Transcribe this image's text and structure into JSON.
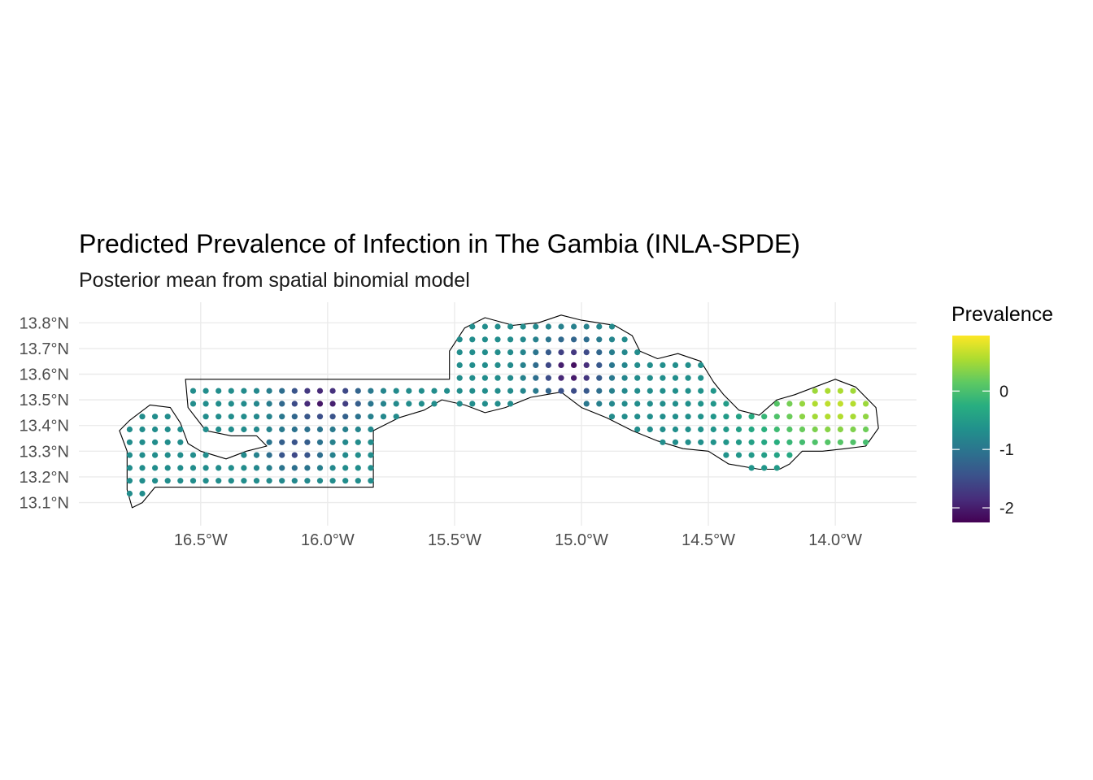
{
  "chart_data": {
    "type": "map",
    "title": "Predicted Prevalence of Infection in The Gambia (INLA-SPDE)",
    "subtitle": "Posterior mean from spatial binomial model",
    "x_ticks": [
      "16.5°W",
      "16.0°W",
      "15.5°W",
      "15.0°W",
      "14.5°W",
      "14.0°W"
    ],
    "x_tick_values": [
      -16.5,
      -16.0,
      -15.5,
      -15.0,
      -14.5,
      -14.0
    ],
    "y_ticks": [
      "13.8°N",
      "13.7°N",
      "13.6°N",
      "13.5°N",
      "13.4°N",
      "13.3°N",
      "13.2°N",
      "13.1°N"
    ],
    "y_tick_values": [
      13.8,
      13.7,
      13.6,
      13.5,
      13.4,
      13.3,
      13.2,
      13.1
    ],
    "xlim": [
      -16.98,
      -13.68
    ],
    "ylim": [
      13.01,
      13.88
    ],
    "grid": true,
    "legend": {
      "title": "Prevalence",
      "position": "right",
      "ticks": [
        "0",
        "-1",
        "-2"
      ],
      "tick_values": [
        0,
        -1,
        -2
      ],
      "range": [
        -2.25,
        0.95
      ]
    },
    "colormap": "viridis",
    "prediction_grid": {
      "lon_start": -16.78,
      "lon_step": 0.05,
      "lat_start": 13.085,
      "lat_step": 0.05,
      "baseline_value": -0.7,
      "hotspots": [
        {
          "lon": -16.02,
          "lat": 13.5,
          "sigma_lon": 0.11,
          "sigma_lat": 0.06,
          "amplitude": -1.4
        },
        {
          "lon": -16.13,
          "lat": 13.3,
          "sigma_lon": 0.08,
          "sigma_lat": 0.05,
          "amplitude": -0.9
        },
        {
          "lon": -15.04,
          "lat": 13.62,
          "sigma_lon": 0.09,
          "sigma_lat": 0.08,
          "amplitude": -1.45
        },
        {
          "lon": -14.0,
          "lat": 13.48,
          "sigma_lon": 0.22,
          "sigma_lat": 0.14,
          "amplitude": 1.35
        }
      ]
    },
    "outline_lonlat": [
      [
        -16.56,
        13.58
      ],
      [
        -15.52,
        13.58
      ],
      [
        -15.52,
        13.69
      ],
      [
        -15.46,
        13.78
      ],
      [
        -15.38,
        13.82
      ],
      [
        -15.27,
        13.79
      ],
      [
        -15.17,
        13.8
      ],
      [
        -15.08,
        13.83
      ],
      [
        -15.0,
        13.81
      ],
      [
        -14.87,
        13.79
      ],
      [
        -14.8,
        13.75
      ],
      [
        -14.77,
        13.69
      ],
      [
        -14.7,
        13.66
      ],
      [
        -14.62,
        13.68
      ],
      [
        -14.53,
        13.65
      ],
      [
        -14.48,
        13.57
      ],
      [
        -14.44,
        13.52
      ],
      [
        -14.38,
        13.46
      ],
      [
        -14.3,
        13.44
      ],
      [
        -14.23,
        13.5
      ],
      [
        -14.16,
        13.52
      ],
      [
        -14.0,
        13.58
      ],
      [
        -13.92,
        13.55
      ],
      [
        -13.84,
        13.47
      ],
      [
        -13.83,
        13.39
      ],
      [
        -13.88,
        13.32
      ],
      [
        -13.96,
        13.31
      ],
      [
        -14.05,
        13.3
      ],
      [
        -14.13,
        13.3
      ],
      [
        -14.18,
        13.25
      ],
      [
        -14.22,
        13.23
      ],
      [
        -14.3,
        13.23
      ],
      [
        -14.42,
        13.25
      ],
      [
        -14.5,
        13.3
      ],
      [
        -14.6,
        13.31
      ],
      [
        -14.7,
        13.34
      ],
      [
        -14.8,
        13.38
      ],
      [
        -14.9,
        13.43
      ],
      [
        -15.0,
        13.47
      ],
      [
        -15.08,
        13.53
      ],
      [
        -15.2,
        13.51
      ],
      [
        -15.3,
        13.47
      ],
      [
        -15.38,
        13.45
      ],
      [
        -15.46,
        13.48
      ],
      [
        -15.55,
        13.5
      ],
      [
        -15.62,
        13.46
      ],
      [
        -15.72,
        13.43
      ],
      [
        -15.82,
        13.38
      ],
      [
        -15.82,
        13.29
      ],
      [
        -15.82,
        13.16
      ],
      [
        -16.2,
        13.16
      ],
      [
        -16.5,
        13.16
      ],
      [
        -16.68,
        13.16
      ],
      [
        -16.73,
        13.1
      ],
      [
        -16.77,
        13.08
      ],
      [
        -16.79,
        13.15
      ],
      [
        -16.79,
        13.3
      ],
      [
        -16.82,
        13.38
      ],
      [
        -16.78,
        13.42
      ],
      [
        -16.7,
        13.48
      ],
      [
        -16.62,
        13.47
      ],
      [
        -16.58,
        13.41
      ],
      [
        -16.55,
        13.33
      ],
      [
        -16.5,
        13.3
      ],
      [
        -16.4,
        13.27
      ],
      [
        -16.32,
        13.3
      ],
      [
        -16.24,
        13.32
      ],
      [
        -16.28,
        13.36
      ],
      [
        -16.38,
        13.36
      ],
      [
        -16.48,
        13.38
      ],
      [
        -16.55,
        13.47
      ],
      [
        -16.56,
        13.58
      ]
    ]
  }
}
